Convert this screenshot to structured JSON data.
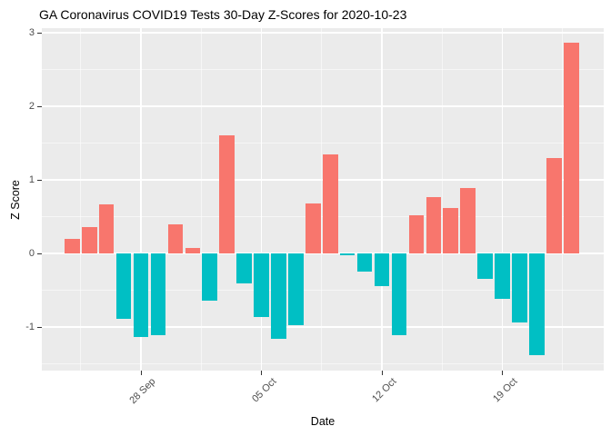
{
  "chart_data": {
    "type": "bar",
    "title": "GA Coronavirus COVID19 Tests 30-Day Z-Scores for 2020-10-23",
    "xlabel": "Date",
    "ylabel": "Z Score",
    "categories": [
      "24 Sep",
      "25 Sep",
      "26 Sep",
      "27 Sep",
      "28 Sep",
      "29 Sep",
      "30 Sep",
      "01 Oct",
      "02 Oct",
      "03 Oct",
      "04 Oct",
      "05 Oct",
      "06 Oct",
      "07 Oct",
      "08 Oct",
      "09 Oct",
      "10 Oct",
      "11 Oct",
      "12 Oct",
      "13 Oct",
      "14 Oct",
      "15 Oct",
      "16 Oct",
      "17 Oct",
      "18 Oct",
      "19 Oct",
      "20 Oct",
      "21 Oct",
      "22 Oct",
      "23 Oct"
    ],
    "values": [
      0.2,
      0.36,
      0.67,
      -0.89,
      -1.14,
      -1.11,
      0.39,
      0.08,
      -0.64,
      1.6,
      -0.41,
      -0.87,
      -1.16,
      -0.98,
      0.68,
      1.34,
      -0.03,
      -0.25,
      -0.45,
      -1.11,
      0.52,
      0.76,
      0.62,
      0.89,
      -0.34,
      -0.62,
      -0.94,
      -1.38,
      1.3,
      2.86
    ],
    "x_tick_labels": [
      "28 Sep",
      "05 Oct",
      "12 Oct",
      "19 Oct"
    ],
    "x_tick_indices": [
      4,
      11,
      18,
      25
    ],
    "y_ticks": [
      -1,
      0,
      1,
      2,
      3
    ],
    "y_minor_ticks": [
      -1.5,
      -0.5,
      0.5,
      1.5,
      2.5
    ],
    "ylim": [
      -1.6,
      3.07
    ],
    "grid": true,
    "legend": "none",
    "colors": {
      "positive_bar": "#F8766D",
      "negative_bar": "#00BFC4",
      "panel_background": "#EBEBEB",
      "gridline": "#FFFFFF",
      "tick_label": "#4D4D4D",
      "axis_title": "#000000",
      "title_text": "#000000"
    }
  }
}
